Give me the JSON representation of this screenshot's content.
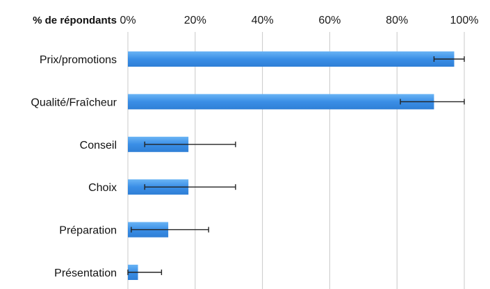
{
  "chart_data": {
    "type": "bar",
    "orientation": "horizontal",
    "axis_title": "% de répondants",
    "xlim": [
      0,
      100
    ],
    "x_ticks": [
      "0%",
      "20%",
      "40%",
      "60%",
      "80%",
      "100%"
    ],
    "x_tick_values": [
      0,
      20,
      40,
      60,
      80,
      100
    ],
    "grid": true,
    "categories": [
      "Prix/promotions",
      "Qualité/Fraîcheur",
      "Conseil",
      "Choix",
      "Préparation",
      "Présentation"
    ],
    "values": [
      97,
      91,
      18,
      18,
      12,
      3
    ],
    "error_low": [
      91,
      81,
      5,
      5,
      1,
      0
    ],
    "error_high": [
      100,
      100,
      32,
      32,
      24,
      10
    ],
    "bar_color": "#3a8ee6",
    "error_color": "#222222"
  }
}
